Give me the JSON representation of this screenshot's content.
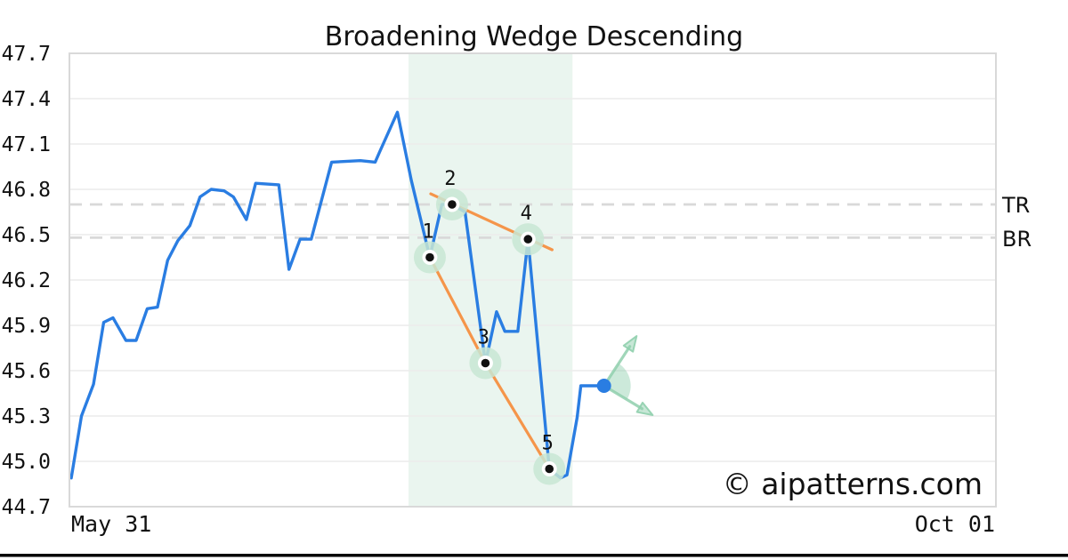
{
  "title": "Broadening Wedge Descending",
  "watermark_text": "© aipatterns.com",
  "colors": {
    "price_line": "#2a7de2",
    "trendline": "#f5954a",
    "pattern_zone": "#eaf5ef",
    "point_halo": "#c8e6d4",
    "point_dot": "#111111",
    "arrow_green": "#8fcfad",
    "level_dash": "#d9d9d9",
    "gridline": "#ececec",
    "plot_border": "#d9d9d9",
    "watermark": "#c9ccf4",
    "text": "#111111",
    "bottom_bar": "#000000"
  },
  "chart_data": {
    "type": "line",
    "title": "Broadening Wedge Descending",
    "grid": "horizontal",
    "legend": "none",
    "x_axis": {
      "labels": [
        "May 31",
        "Oct 01"
      ]
    },
    "y_axis": {
      "min": 44.7,
      "max": 47.7,
      "step": 0.3,
      "tick_labels": [
        "47.7",
        "47.4",
        "47.1",
        "46.8",
        "46.5",
        "46.2",
        "45.9",
        "45.6",
        "45.3",
        "45.0",
        "44.7"
      ]
    },
    "price_series": {
      "name": "price",
      "x": [
        0.002,
        0.013,
        0.026,
        0.037,
        0.047,
        0.061,
        0.072,
        0.084,
        0.095,
        0.106,
        0.117,
        0.13,
        0.141,
        0.153,
        0.167,
        0.177,
        0.191,
        0.201,
        0.226,
        0.237,
        0.249,
        0.261,
        0.283,
        0.314,
        0.33,
        0.335,
        0.354,
        0.369,
        0.389,
        0.402,
        0.413,
        0.427,
        0.449,
        0.461,
        0.47,
        0.484,
        0.495,
        0.518,
        0.53,
        0.537,
        0.548,
        0.552,
        0.577
      ],
      "y": [
        44.89,
        45.3,
        45.51,
        45.92,
        45.95,
        45.8,
        45.8,
        46.01,
        46.02,
        46.33,
        46.46,
        46.56,
        46.75,
        46.8,
        46.79,
        46.75,
        46.6,
        46.84,
        46.83,
        46.27,
        46.47,
        46.47,
        46.98,
        46.99,
        46.98,
        47.05,
        47.31,
        46.86,
        46.35,
        46.7,
        46.7,
        46.65,
        45.65,
        45.99,
        45.86,
        45.86,
        46.47,
        44.95,
        44.89,
        44.91,
        45.29,
        45.5,
        45.5
      ]
    },
    "pattern_points": [
      {
        "label": "1",
        "x": 0.389,
        "y": 46.35
      },
      {
        "label": "2",
        "x": 0.413,
        "y": 46.7
      },
      {
        "label": "3",
        "x": 0.449,
        "y": 45.65
      },
      {
        "label": "4",
        "x": 0.495,
        "y": 46.47
      },
      {
        "label": "5",
        "x": 0.518,
        "y": 44.95
      }
    ],
    "trendlines": [
      {
        "name": "upper",
        "points": [
          [
            0.39,
            46.77
          ],
          [
            0.521,
            46.4
          ]
        ]
      },
      {
        "name": "lower",
        "points": [
          [
            0.389,
            46.35
          ],
          [
            0.449,
            45.65
          ],
          [
            0.518,
            44.95
          ]
        ]
      }
    ],
    "levels": [
      {
        "label": "TR",
        "value": 46.7
      },
      {
        "label": "BR",
        "value": 46.48
      }
    ],
    "pattern_zone": {
      "x0": 0.366,
      "x1": 0.543
    },
    "breakout": {
      "dot": {
        "x": 0.577,
        "y": 45.5
      },
      "arrows": [
        {
          "name": "up",
          "x": 0.608,
          "y": 45.79
        },
        {
          "name": "down",
          "x": 0.623,
          "y": 45.33
        }
      ],
      "sector_radius": 30
    }
  }
}
